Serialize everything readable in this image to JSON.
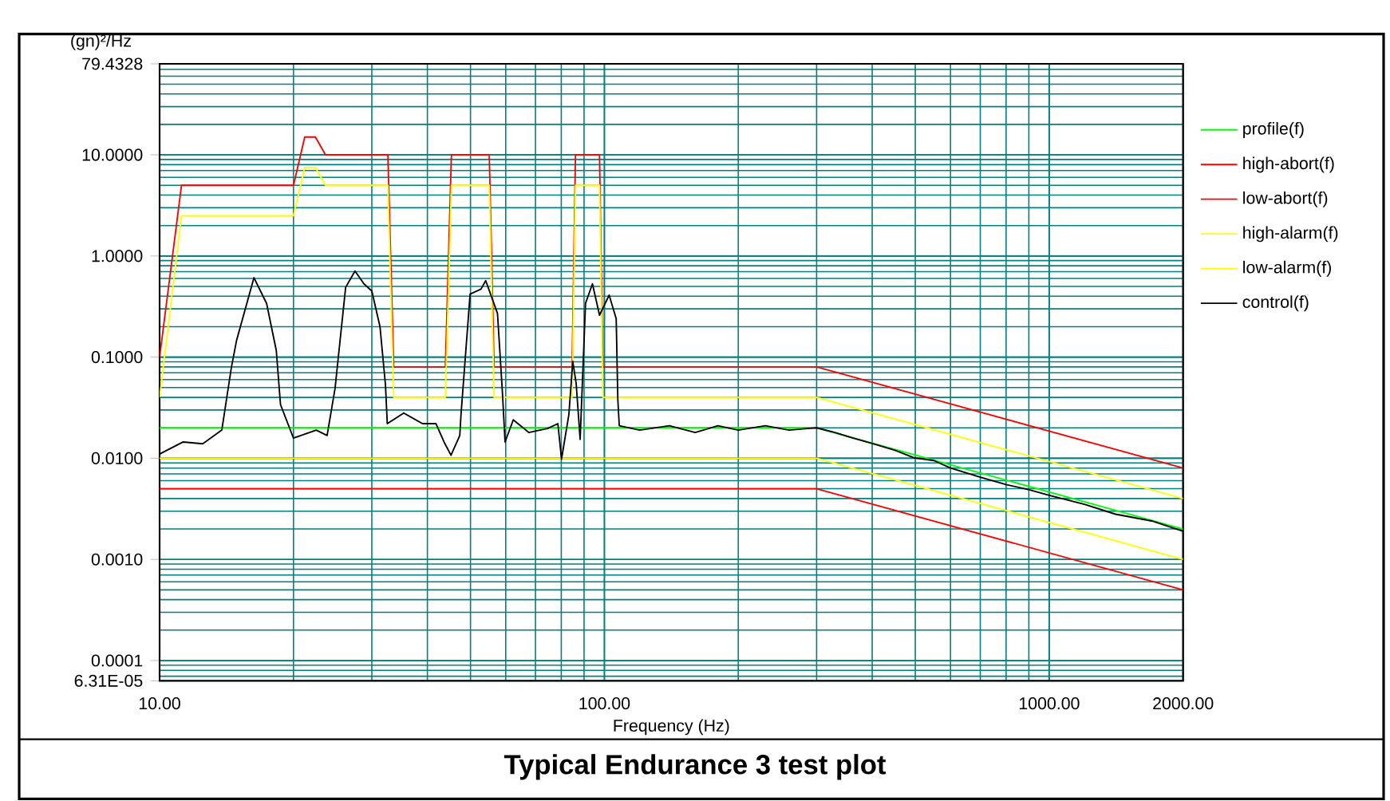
{
  "chart_data": {
    "type": "line",
    "title": "Typical Endurance 3 test plot",
    "xlabel": "Frequency (Hz)",
    "ylabel": "(gn)²/Hz",
    "log": "xy",
    "grid": true,
    "legend": "right",
    "xlim": [
      10,
      2000
    ],
    "ylim": [
      6.31e-05,
      79.4328
    ],
    "xticks": [
      {
        "value": 10,
        "label": "10.00"
      },
      {
        "value": 100,
        "label": "100.00"
      },
      {
        "value": 1000,
        "label": "1000.00"
      },
      {
        "value": 2000,
        "label": "2000.00"
      }
    ],
    "yticks": [
      {
        "value": 6.31e-05,
        "label": "6.31E-05"
      },
      {
        "value": 0.0001,
        "label": "0.0001"
      },
      {
        "value": 0.001,
        "label": "0.0010"
      },
      {
        "value": 0.01,
        "label": "0.0100"
      },
      {
        "value": 0.1,
        "label": "0.1000"
      },
      {
        "value": 1,
        "label": "1.0000"
      },
      {
        "value": 10,
        "label": "10.0000"
      },
      {
        "value": 79.4328,
        "label": "79.4328"
      }
    ],
    "series": [
      {
        "name": "profile(f)",
        "color": "#00ff00",
        "x": [
          10,
          300,
          2000
        ],
        "values": [
          0.02,
          0.02,
          0.002
        ]
      },
      {
        "name": "high-abort(f)",
        "color": "#ff0000",
        "x": [
          10,
          11.2,
          20,
          21.2,
          22.4,
          23.6,
          32.6,
          33.6,
          43.9,
          45.3,
          55.1,
          56.5,
          84.6,
          86.1,
          97.5,
          99.2,
          300,
          2000
        ],
        "values": [
          0.1,
          5,
          5,
          15,
          15,
          10,
          10,
          0.08,
          0.08,
          10,
          10,
          0.08,
          0.08,
          10,
          10,
          0.08,
          0.08,
          0.008
        ]
      },
      {
        "name": "low-abort(f)",
        "color": "#ff0000",
        "x": [
          10,
          300,
          2000
        ],
        "values": [
          0.005,
          0.005,
          0.0005
        ]
      },
      {
        "name": "high-alarm(f)",
        "color": "#ffff00",
        "x": [
          10,
          11.2,
          20,
          21.2,
          22.4,
          23.6,
          32.6,
          33.6,
          43.9,
          45.3,
          55.1,
          56.5,
          84.6,
          86.1,
          97.5,
          99.2,
          300,
          2000
        ],
        "values": [
          0.04,
          2.5,
          2.5,
          7.5,
          7.5,
          5,
          5,
          0.04,
          0.04,
          5,
          5,
          0.04,
          0.04,
          5,
          5,
          0.04,
          0.04,
          0.004
        ]
      },
      {
        "name": "low-alarm(f)",
        "color": "#ffff00",
        "x": [
          10,
          300,
          2000
        ],
        "values": [
          0.01,
          0.01,
          0.001
        ]
      },
      {
        "name": "control(f)",
        "color": "#000000",
        "x": [
          10,
          11.3,
          12.5,
          13.8,
          14.5,
          14.9,
          16.3,
          17.4,
          18.3,
          18.7,
          20,
          22.5,
          23.8,
          24.8,
          26.2,
          27.5,
          28.8,
          30,
          31.3,
          32.2,
          32.5,
          35.4,
          39,
          41.8,
          43.6,
          45.2,
          47.3,
          47.6,
          49.9,
          52.8,
          54.1,
          57.5,
          59,
          59.8,
          62.4,
          67.6,
          74.5,
          78.6,
          80.1,
          83.2,
          84.9,
          86.4,
          88.2,
          90.7,
          94,
          97.5,
          102.5,
          106.3,
          107.2,
          108,
          120,
          140,
          160,
          180,
          200,
          230,
          260,
          300,
          330,
          360,
          400,
          450,
          497,
          550,
          600,
          700,
          800,
          898,
          1000,
          1200,
          1410,
          1700,
          2000
        ],
        "values": [
          0.011,
          0.0145,
          0.0139,
          0.019,
          0.079,
          0.147,
          0.61,
          0.34,
          0.116,
          0.034,
          0.0158,
          0.019,
          0.0168,
          0.049,
          0.49,
          0.71,
          0.53,
          0.45,
          0.2,
          0.053,
          0.022,
          0.028,
          0.022,
          0.022,
          0.0145,
          0.0107,
          0.0168,
          0.027,
          0.42,
          0.47,
          0.57,
          0.27,
          0.044,
          0.0145,
          0.024,
          0.018,
          0.0197,
          0.022,
          0.0098,
          0.027,
          0.091,
          0.055,
          0.0154,
          0.34,
          0.53,
          0.26,
          0.41,
          0.24,
          0.038,
          0.021,
          0.019,
          0.021,
          0.018,
          0.021,
          0.019,
          0.021,
          0.019,
          0.02,
          0.018,
          0.016,
          0.014,
          0.012,
          0.0101,
          0.0095,
          0.008,
          0.0065,
          0.0055,
          0.0049,
          0.0043,
          0.0035,
          0.0028,
          0.0024,
          0.0019
        ]
      }
    ]
  }
}
